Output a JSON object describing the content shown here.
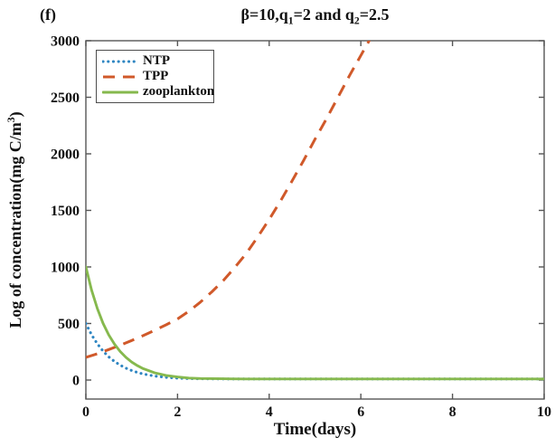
{
  "figure": {
    "panel_label": "(f)",
    "title_segments": [
      {
        "t": "β=10,q"
      },
      {
        "t": "1",
        "sub": true
      },
      {
        "t": "=2 and q"
      },
      {
        "t": "2",
        "sub": true
      },
      {
        "t": "=2.5"
      }
    ],
    "x_axis": {
      "label": "Time(days)",
      "tick_values": [
        0,
        2,
        4,
        6,
        8,
        10
      ],
      "tick_labels": [
        "0",
        "2",
        "4",
        "6",
        "8",
        "10"
      ]
    },
    "y_axis": {
      "label_segments": [
        {
          "t": "Log of concentration(mg C/m"
        },
        {
          "t": "3",
          "sup": true
        },
        {
          "t": ")"
        }
      ],
      "tick_values": [
        0,
        500,
        1000,
        1500,
        2000,
        2500,
        3000
      ],
      "tick_labels": [
        "0",
        "500",
        "1000",
        "1500",
        "2000",
        "2500",
        "3000"
      ]
    },
    "colors": {
      "ntp_blue": "#2f86c2",
      "tpp_orange": "#d0592a",
      "zooplankton_green": "#86b94e",
      "axis_gray": "#555555",
      "text_black": "#111111"
    }
  },
  "legend": {
    "position": "upper-left",
    "entries": [
      {
        "label": "NTP",
        "color": "#2f86c2",
        "line_style": "dotted"
      },
      {
        "label": "TPP",
        "color": "#d0592a",
        "line_style": "dashed"
      },
      {
        "label": "zooplankton",
        "color": "#86b94e",
        "line_style": "solid"
      }
    ]
  },
  "chart_data": {
    "type": "line",
    "title": "β=10,q1=2 and q2=2.5",
    "xlabel": "Time(days)",
    "ylabel": "Log of concentration(mg C/m3)",
    "xlim": [
      0,
      10
    ],
    "ylim": [
      -170,
      3000
    ],
    "grid": false,
    "legend_position": "upper-left",
    "series": [
      {
        "name": "NTP",
        "color": "#2f86c2",
        "style": "dotted",
        "x": [
          0,
          0.125,
          0.25,
          0.375,
          0.5,
          0.625,
          0.75,
          0.875,
          1,
          1.125,
          1.25,
          1.5,
          1.75,
          2,
          2.25,
          2.5,
          3,
          3.5,
          4,
          5,
          6,
          7,
          8,
          9,
          10
        ],
        "y": [
          500,
          400,
          320,
          256,
          205,
          164,
          131,
          105,
          84,
          67,
          54,
          35,
          24,
          17,
          13,
          11,
          10,
          10,
          10,
          10,
          10,
          10,
          10,
          10,
          10
        ]
      },
      {
        "name": "TPP",
        "color": "#d0592a",
        "style": "dashed",
        "x": [
          0,
          0.25,
          0.5,
          0.75,
          1,
          1.25,
          1.5,
          1.75,
          2,
          2.25,
          2.5,
          2.75,
          3,
          3.25,
          3.5,
          3.75,
          4,
          4.25,
          4.5,
          4.75,
          5,
          5.25,
          5.5,
          5.75,
          6,
          6.25,
          6.5
        ],
        "y": [
          200,
          232,
          270,
          308,
          350,
          393,
          440,
          488,
          540,
          610,
          690,
          780,
          880,
          995,
          1120,
          1265,
          1420,
          1585,
          1760,
          1940,
          2130,
          2310,
          2500,
          2690,
          2870,
          3050,
          3240
        ]
      },
      {
        "name": "zooplankton",
        "color": "#86b94e",
        "style": "solid",
        "x": [
          0,
          0.125,
          0.25,
          0.375,
          0.5,
          0.625,
          0.75,
          0.875,
          1,
          1.125,
          1.25,
          1.5,
          1.75,
          2,
          2.25,
          2.5,
          3,
          3.5,
          4,
          5,
          6,
          7,
          8,
          9,
          10
        ],
        "y": [
          1000,
          795,
          632,
          502,
          399,
          317,
          252,
          200,
          159,
          127,
          101,
          64,
          41,
          27,
          18,
          14,
          11,
          10,
          10,
          10,
          10,
          10,
          10,
          10,
          10
        ]
      }
    ]
  }
}
